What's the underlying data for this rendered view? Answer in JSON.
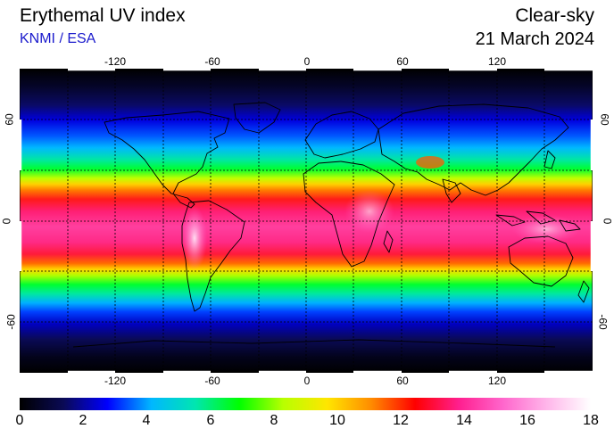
{
  "header": {
    "title": "Erythemal UV index",
    "agency": "KNMI / ESA",
    "mode": "Clear-sky",
    "date": "21 March 2024"
  },
  "map": {
    "projection": "equirectangular",
    "lon_ticks": [
      "-120",
      "-60",
      "0",
      "60",
      "120"
    ],
    "lat_ticks": [
      "60",
      "0",
      "-60"
    ],
    "grid": true,
    "coastlines": true
  },
  "colorbar": {
    "min": 0,
    "max": 18,
    "labels": [
      "0",
      "2",
      "4",
      "6",
      "8",
      "10",
      "12",
      "14",
      "16",
      "18"
    ],
    "colors": [
      "#000000",
      "#0a0a55",
      "#0000ff",
      "#00b7ff",
      "#00e6b0",
      "#00ff00",
      "#b8ff00",
      "#ffe600",
      "#ff8c00",
      "#ff0000",
      "#ff1f8f",
      "#ff66cc",
      "#ffb6ea",
      "#ffffff"
    ]
  },
  "colors": {
    "agency_text": "#1a1acc"
  }
}
